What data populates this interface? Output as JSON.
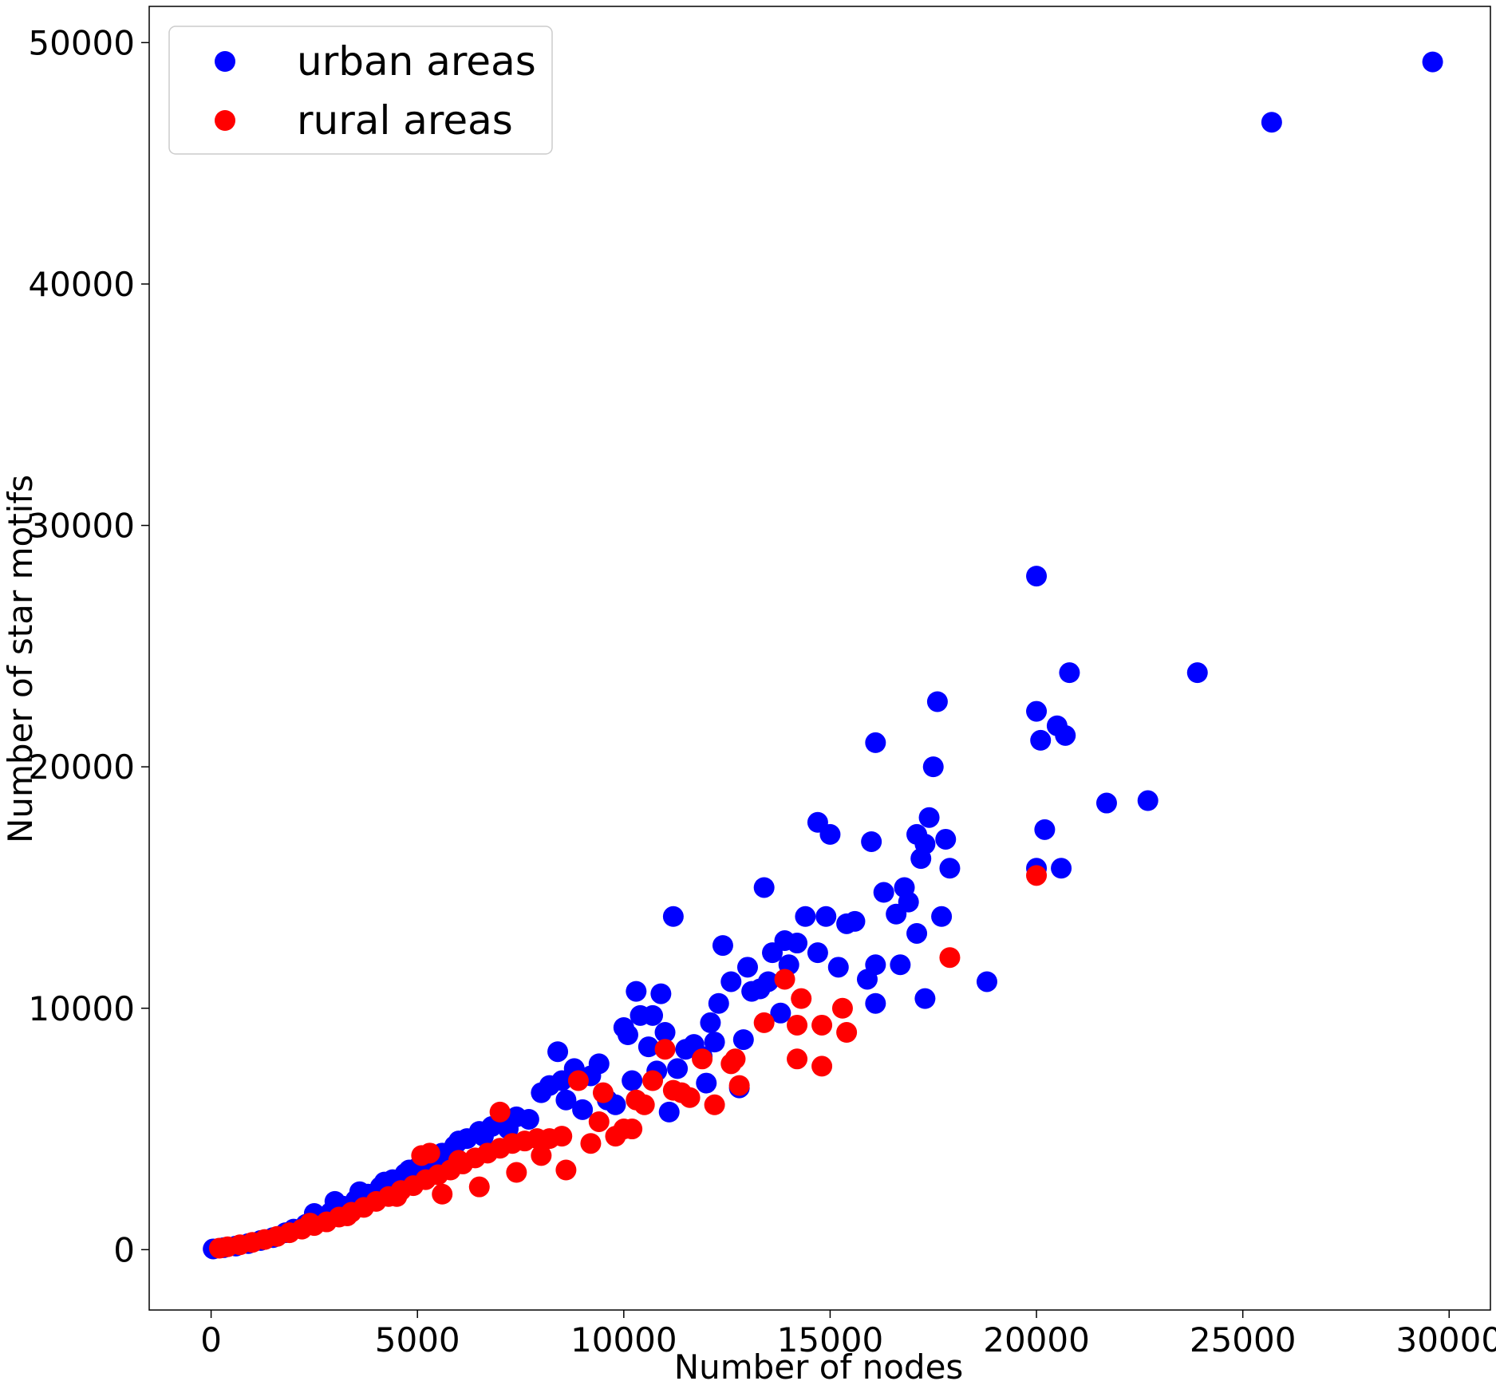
{
  "chart_data": {
    "type": "scatter",
    "xlabel": "Number of nodes",
    "ylabel": "Number of star motifs",
    "xlim": [
      -1500,
      31000
    ],
    "ylim": [
      -2500,
      51500
    ],
    "xticks": [
      0,
      5000,
      10000,
      15000,
      20000,
      25000,
      30000
    ],
    "yticks": [
      0,
      10000,
      20000,
      30000,
      40000,
      50000
    ],
    "grid": false,
    "legend": {
      "position": "top-left"
    },
    "series": [
      {
        "name": "urban areas",
        "color": "#0000ff",
        "points": [
          [
            50,
            30
          ],
          [
            300,
            80
          ],
          [
            600,
            150
          ],
          [
            900,
            250
          ],
          [
            1200,
            380
          ],
          [
            1500,
            500
          ],
          [
            1800,
            700
          ],
          [
            2000,
            850
          ],
          [
            2300,
            1050
          ],
          [
            2600,
            1300
          ],
          [
            2900,
            1550
          ],
          [
            3200,
            1800
          ],
          [
            3500,
            2050
          ],
          [
            3800,
            2300
          ],
          [
            4100,
            2600
          ],
          [
            4400,
            2900
          ],
          [
            4700,
            3150
          ],
          [
            5000,
            3400
          ],
          [
            5300,
            3700
          ],
          [
            5600,
            4000
          ],
          [
            5900,
            4300
          ],
          [
            6200,
            4600
          ],
          [
            6500,
            4900
          ],
          [
            6800,
            5100
          ],
          [
            7100,
            5300
          ],
          [
            7400,
            5500
          ],
          [
            2500,
            1500
          ],
          [
            3000,
            2000
          ],
          [
            3600,
            2400
          ],
          [
            4200,
            2800
          ],
          [
            4800,
            3300
          ],
          [
            5400,
            3600
          ],
          [
            6000,
            4500
          ],
          [
            6600,
            4700
          ],
          [
            7200,
            5000
          ],
          [
            7700,
            5400
          ],
          [
            8000,
            6500
          ],
          [
            8200,
            6800
          ],
          [
            8400,
            8200
          ],
          [
            8500,
            7000
          ],
          [
            8600,
            6200
          ],
          [
            8800,
            7500
          ],
          [
            9000,
            5800
          ],
          [
            9200,
            7200
          ],
          [
            9400,
            7700
          ],
          [
            9600,
            6200
          ],
          [
            9800,
            6000
          ],
          [
            10000,
            9200
          ],
          [
            10100,
            8900
          ],
          [
            10200,
            7000
          ],
          [
            10300,
            10700
          ],
          [
            10400,
            9700
          ],
          [
            10600,
            8400
          ],
          [
            10700,
            9700
          ],
          [
            10800,
            7400
          ],
          [
            10900,
            10600
          ],
          [
            11000,
            9000
          ],
          [
            11100,
            5700
          ],
          [
            11200,
            13800
          ],
          [
            11300,
            7500
          ],
          [
            11500,
            8300
          ],
          [
            11700,
            8500
          ],
          [
            11900,
            8000
          ],
          [
            12000,
            6900
          ],
          [
            12100,
            9400
          ],
          [
            12200,
            8600
          ],
          [
            12300,
            10200
          ],
          [
            12400,
            12600
          ],
          [
            12600,
            11100
          ],
          [
            12800,
            6700
          ],
          [
            12900,
            8700
          ],
          [
            13000,
            11700
          ],
          [
            13100,
            10700
          ],
          [
            13300,
            10800
          ],
          [
            13400,
            15000
          ],
          [
            13500,
            11100
          ],
          [
            13600,
            12300
          ],
          [
            13800,
            9800
          ],
          [
            13900,
            12800
          ],
          [
            14000,
            11800
          ],
          [
            14200,
            12700
          ],
          [
            14400,
            13800
          ],
          [
            14700,
            12300
          ],
          [
            14700,
            17700
          ],
          [
            14900,
            13800
          ],
          [
            15000,
            17200
          ],
          [
            15200,
            11700
          ],
          [
            15400,
            13500
          ],
          [
            15600,
            13600
          ],
          [
            15900,
            11200
          ],
          [
            16000,
            16900
          ],
          [
            16100,
            21000
          ],
          [
            16100,
            11800
          ],
          [
            16100,
            10200
          ],
          [
            16300,
            14800
          ],
          [
            16600,
            13900
          ],
          [
            16700,
            11800
          ],
          [
            16800,
            15000
          ],
          [
            16900,
            14400
          ],
          [
            17100,
            17200
          ],
          [
            17100,
            13100
          ],
          [
            17200,
            16200
          ],
          [
            17300,
            16800
          ],
          [
            17300,
            10400
          ],
          [
            17400,
            17900
          ],
          [
            17500,
            20000
          ],
          [
            17600,
            22700
          ],
          [
            17700,
            13800
          ],
          [
            17800,
            17000
          ],
          [
            17900,
            15800
          ],
          [
            18800,
            11100
          ],
          [
            20000,
            15800
          ],
          [
            20000,
            27900
          ],
          [
            20000,
            22300
          ],
          [
            20100,
            21100
          ],
          [
            20200,
            17400
          ],
          [
            20600,
            15800
          ],
          [
            20500,
            21700
          ],
          [
            20700,
            21300
          ],
          [
            20800,
            23900
          ],
          [
            21700,
            18500
          ],
          [
            22700,
            18600
          ],
          [
            23900,
            23900
          ],
          [
            25700,
            46700
          ],
          [
            29600,
            49200
          ]
        ]
      },
      {
        "name": "rural areas",
        "color": "#ff0000",
        "points": [
          [
            200,
            60
          ],
          [
            400,
            120
          ],
          [
            700,
            200
          ],
          [
            1000,
            300
          ],
          [
            1300,
            420
          ],
          [
            1600,
            550
          ],
          [
            1900,
            700
          ],
          [
            2200,
            850
          ],
          [
            2500,
            1000
          ],
          [
            2800,
            1150
          ],
          [
            3100,
            1350
          ],
          [
            3400,
            1550
          ],
          [
            3700,
            1750
          ],
          [
            4000,
            2000
          ],
          [
            4300,
            2200
          ],
          [
            4600,
            2450
          ],
          [
            4900,
            2650
          ],
          [
            5200,
            2900
          ],
          [
            5500,
            3100
          ],
          [
            5800,
            3300
          ],
          [
            6100,
            3550
          ],
          [
            6400,
            3800
          ],
          [
            6700,
            4000
          ],
          [
            7000,
            4200
          ],
          [
            7300,
            4400
          ],
          [
            7600,
            4500
          ],
          [
            7900,
            4600
          ],
          [
            8200,
            4600
          ],
          [
            8500,
            4700
          ],
          [
            5100,
            3900
          ],
          [
            5300,
            4000
          ],
          [
            6000,
            3700
          ],
          [
            7000,
            5700
          ],
          [
            2400,
            1100
          ],
          [
            3300,
            1400
          ],
          [
            4500,
            2200
          ],
          [
            5600,
            2300
          ],
          [
            6500,
            2600
          ],
          [
            7400,
            3200
          ],
          [
            8000,
            3900
          ],
          [
            8600,
            3300
          ],
          [
            8900,
            7000
          ],
          [
            9200,
            4400
          ],
          [
            9400,
            5300
          ],
          [
            9500,
            6500
          ],
          [
            9800,
            4700
          ],
          [
            10000,
            5000
          ],
          [
            10200,
            5000
          ],
          [
            10300,
            6200
          ],
          [
            10500,
            6000
          ],
          [
            10700,
            7000
          ],
          [
            11000,
            8300
          ],
          [
            11200,
            6600
          ],
          [
            11400,
            6500
          ],
          [
            11600,
            6300
          ],
          [
            11900,
            7900
          ],
          [
            12200,
            6000
          ],
          [
            12600,
            7700
          ],
          [
            12700,
            7900
          ],
          [
            12800,
            6800
          ],
          [
            13400,
            9400
          ],
          [
            13900,
            11200
          ],
          [
            14200,
            9300
          ],
          [
            14200,
            7900
          ],
          [
            14300,
            10400
          ],
          [
            14800,
            9300
          ],
          [
            14800,
            7600
          ],
          [
            15300,
            10000
          ],
          [
            15400,
            9000
          ],
          [
            17900,
            12100
          ],
          [
            20000,
            15500
          ]
        ]
      }
    ]
  }
}
